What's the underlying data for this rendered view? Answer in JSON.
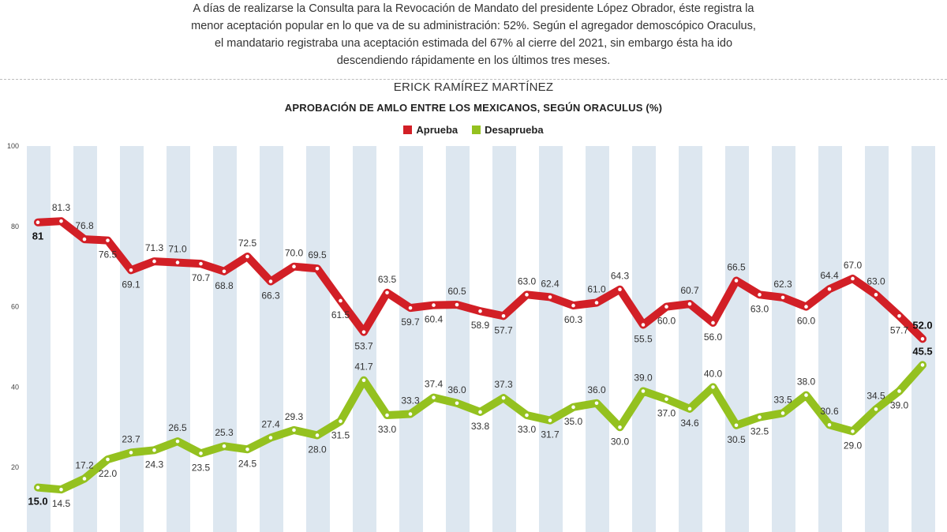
{
  "intro": {
    "lines": [
      "A días de realizarse la Consulta para la Revocación de Mandato del presidente López Obrador, éste registra la",
      "menor aceptación popular en lo que va de su administración: 52%. Según el agregador demoscópico Oraculus,",
      "el mandatario registraba una aceptación estimada del 67% al cierre del 2021, sin embargo ésta ha ido",
      "descendiendo rápidamente en los últimos tres meses."
    ]
  },
  "author": "ERICK RAMÍREZ MARTÍNEZ",
  "colors": {
    "aprueba": "#d21f26",
    "desaprueba": "#94c11f",
    "stripe": "#dde7f0"
  },
  "chart_data": {
    "type": "line",
    "title": "APROBACIÓN DE AMLO ENTRE LOS MEXICANOS, SEGÚN ORACULUS (%)",
    "ylim": [
      10,
      100
    ],
    "yticks": [
      "20",
      "40",
      "60",
      "80",
      "100"
    ],
    "grid": "alternating vertical bands",
    "legend_position": "top-center",
    "series": [
      {
        "name": "Aprueba",
        "values": [
          81,
          81.3,
          76.8,
          76.5,
          69.1,
          71.3,
          71.0,
          70.7,
          68.8,
          72.5,
          66.3,
          70.0,
          69.5,
          61.5,
          53.7,
          63.5,
          59.7,
          60.4,
          60.5,
          58.9,
          57.7,
          63.0,
          62.4,
          60.3,
          61.0,
          64.3,
          55.5,
          60.0,
          60.7,
          56.0,
          66.5,
          63.0,
          62.3,
          60.0,
          64.4,
          67.0,
          63.0,
          57.7,
          52.0
        ],
        "labels": [
          "81",
          "81.3",
          "76.8",
          "76.5",
          "69.1",
          "71.3",
          "71.0",
          "70.7",
          "68.8",
          "72.5",
          "66.3",
          "70.0",
          "69.5",
          "61.5",
          "53.7",
          "63.5",
          "59.7",
          "60.4",
          "60.5",
          "58.9",
          "57.7",
          "63.0",
          "62.4",
          "60.3",
          "61.0",
          "64.3",
          "55.5",
          "60.0",
          "60.7",
          "56.0",
          "66.5",
          "63.0",
          "62.3",
          "60.0",
          "64.4",
          "67.0",
          "63.0",
          "57.7",
          "52.0"
        ]
      },
      {
        "name": "Desaprueba",
        "values": [
          15.0,
          14.5,
          17.2,
          22.0,
          23.7,
          24.3,
          26.5,
          23.5,
          25.3,
          24.5,
          27.4,
          29.3,
          28.0,
          31.5,
          41.7,
          33.0,
          33.3,
          37.4,
          36.0,
          33.8,
          37.3,
          33.0,
          31.7,
          35.0,
          36.0,
          30.0,
          39.0,
          37.0,
          34.6,
          40.0,
          30.5,
          32.5,
          33.5,
          38.0,
          30.6,
          29.0,
          34.5,
          39.0,
          45.5
        ],
        "labels": [
          "15.0",
          "14.5",
          "17.2",
          "22.0",
          "23.7",
          "24.3",
          "26.5",
          "23.5",
          "25.3",
          "24.5",
          "27.4",
          "29.3",
          "28.0",
          "31.5",
          "41.7",
          "33.0",
          "33.3",
          "37.4",
          "36.0",
          "33.8",
          "37.3",
          "33.0",
          "31.7",
          "35.0",
          "36.0",
          "30.0",
          "39.0",
          "37.0",
          "34.6",
          "40.0",
          "30.5",
          "32.5",
          "33.5",
          "38.0",
          "30.6",
          "29.0",
          "34.5",
          "39.0",
          "45.5"
        ]
      }
    ]
  }
}
